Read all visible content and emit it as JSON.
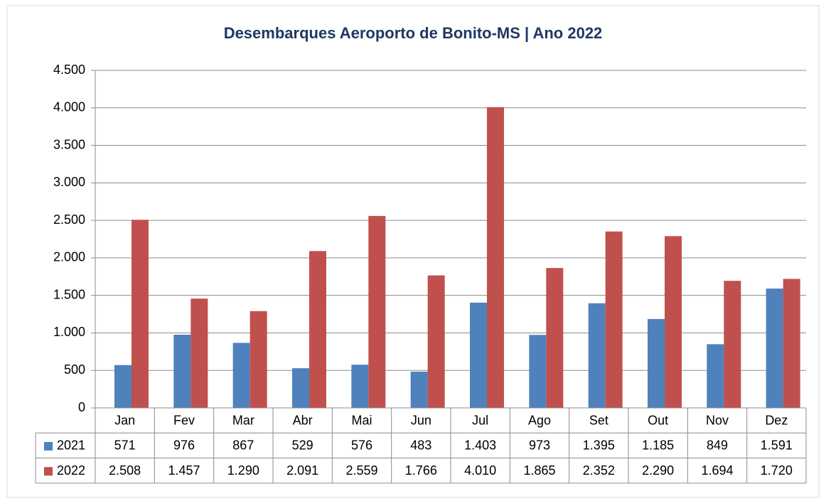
{
  "chart_data": {
    "type": "bar",
    "title": "Desembarques Aeroporto de Bonito-MS | Ano 2022",
    "categories": [
      "Jan",
      "Fev",
      "Mar",
      "Abr",
      "Mai",
      "Jun",
      "Jul",
      "Ago",
      "Set",
      "Out",
      "Nov",
      "Dez"
    ],
    "series": [
      {
        "name": "2021",
        "color": "#4f81bd",
        "values": [
          571,
          976,
          867,
          529,
          576,
          483,
          1403,
          973,
          1395,
          1185,
          849,
          1591
        ],
        "value_labels": [
          "571",
          "976",
          "867",
          "529",
          "576",
          "483",
          "1.403",
          "973",
          "1.395",
          "1.185",
          "849",
          "1.591"
        ]
      },
      {
        "name": "2022",
        "color": "#c0504d",
        "values": [
          2508,
          1457,
          1290,
          2091,
          2559,
          1766,
          4010,
          1865,
          2352,
          2290,
          1694,
          1720
        ],
        "value_labels": [
          "2.508",
          "1.457",
          "1.290",
          "2.091",
          "2.559",
          "1.766",
          "4.010",
          "1.865",
          "2.352",
          "2.290",
          "1.694",
          "1.720"
        ]
      }
    ],
    "ylim": [
      0,
      4500
    ],
    "yticks": [
      0,
      500,
      {
        "value": 1000,
        "label": "1.000"
      },
      {
        "value": 1500,
        "label": "1.500"
      },
      {
        "value": 2000,
        "label": "2.000"
      },
      {
        "value": 2500,
        "label": "2.500"
      },
      {
        "value": 3000,
        "label": "3.000"
      },
      {
        "value": 3500,
        "label": "3.500"
      },
      {
        "value": 4000,
        "label": "4.000"
      },
      {
        "value": 4500,
        "label": "4.500"
      }
    ],
    "grid": true
  }
}
